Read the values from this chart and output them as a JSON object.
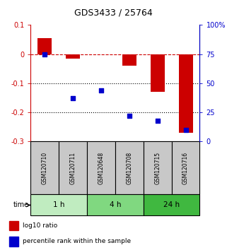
{
  "title": "GDS3433 / 25764",
  "samples": [
    "GSM120710",
    "GSM120711",
    "GSM120648",
    "GSM120708",
    "GSM120715",
    "GSM120716"
  ],
  "log10_ratio": [
    0.055,
    -0.015,
    0.0,
    -0.04,
    -0.13,
    -0.27
  ],
  "percentile_rank": [
    75,
    37,
    44,
    22,
    18,
    10
  ],
  "time_groups": [
    {
      "label": "1 h",
      "start": 0,
      "end": 2,
      "color": "#c0ecc0"
    },
    {
      "label": "4 h",
      "start": 2,
      "end": 4,
      "color": "#80d880"
    },
    {
      "label": "24 h",
      "start": 4,
      "end": 6,
      "color": "#40b840"
    }
  ],
  "bar_color": "#cc0000",
  "dot_color": "#0000cc",
  "ylim_left": [
    -0.3,
    0.1
  ],
  "ylim_right": [
    0,
    100
  ],
  "yticks_left": [
    0.1,
    0.0,
    -0.1,
    -0.2,
    -0.3
  ],
  "yticks_right": [
    100,
    75,
    50,
    25,
    0
  ],
  "ytick_labels_left": [
    "0.1",
    "0",
    "-0.1",
    "-0.2",
    "-0.3"
  ],
  "ytick_labels_right": [
    "100%",
    "75",
    "50",
    "25",
    "0"
  ],
  "hline_y": 0.0,
  "dotted_lines": [
    -0.1,
    -0.2
  ],
  "legend_red": "log10 ratio",
  "legend_blue": "percentile rank within the sample",
  "bar_width": 0.5,
  "sample_box_color": "#c8c8c8",
  "fig_bg": "#ffffff"
}
